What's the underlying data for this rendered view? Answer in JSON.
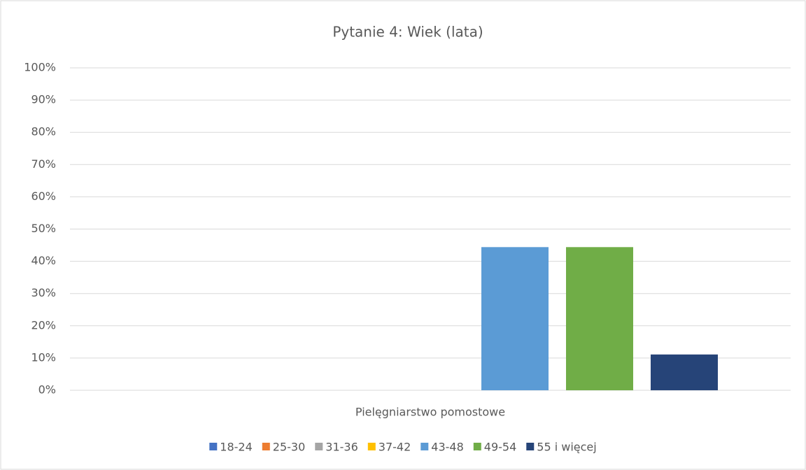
{
  "chart_data": {
    "type": "bar",
    "title": "Pytanie 4: Wiek (lata)",
    "categories": [
      "Pielęgniarstwo pomostowe"
    ],
    "series": [
      {
        "name": "18-24",
        "color": "#4472c4",
        "values": [
          0
        ]
      },
      {
        "name": "25-30",
        "color": "#ed7d31",
        "values": [
          0
        ]
      },
      {
        "name": "31-36",
        "color": "#a5a5a5",
        "values": [
          0
        ]
      },
      {
        "name": "37-42",
        "color": "#ffc000",
        "values": [
          0
        ]
      },
      {
        "name": "43-48",
        "color": "#5b9bd5",
        "values": [
          44.4
        ]
      },
      {
        "name": "49-54",
        "color": "#70ad47",
        "values": [
          44.4
        ]
      },
      {
        "name": "55 i więcej",
        "color": "#264478",
        "values": [
          11.1
        ]
      }
    ],
    "ylim": [
      0,
      100
    ],
    "yticks": [
      {
        "value": 0,
        "label": "0%"
      },
      {
        "value": 10,
        "label": "10%"
      },
      {
        "value": 20,
        "label": "20%"
      },
      {
        "value": 30,
        "label": "30%"
      },
      {
        "value": 40,
        "label": "40%"
      },
      {
        "value": 50,
        "label": "50%"
      },
      {
        "value": 60,
        "label": "60%"
      },
      {
        "value": 70,
        "label": "70%"
      },
      {
        "value": 80,
        "label": "80%"
      },
      {
        "value": 90,
        "label": "90%"
      },
      {
        "value": 100,
        "label": "100%"
      }
    ],
    "grid": true,
    "legend": "bottom"
  }
}
